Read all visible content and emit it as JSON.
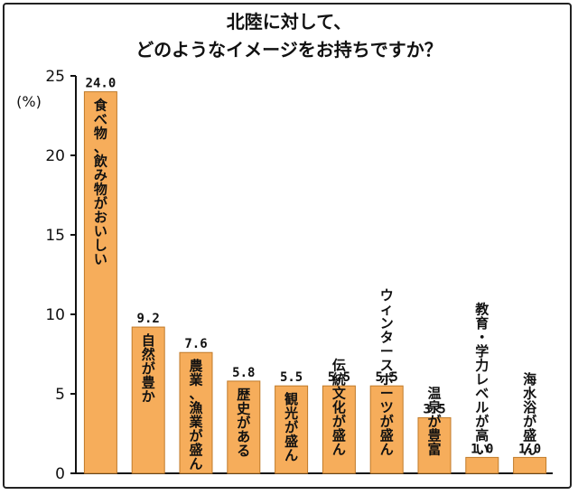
{
  "chart_data": {
    "type": "bar",
    "title": [
      "北陸に対して、",
      "どのようなイメージをお持ちですか？"
    ],
    "ylabel": "(%)",
    "ylim": [
      0,
      25
    ],
    "yticks": [
      0,
      5,
      10,
      15,
      20,
      25
    ],
    "grid": false,
    "bar_color": "#f6ad5b",
    "bar_edge_color": "#c07a2a",
    "categories": [
      "食べ物、飲み物がおいしい",
      "自然が豊か",
      "農業、漁業が盛ん",
      "歴史がある",
      "観光が盛ん",
      "伝統文化が盛ん",
      "ウィンタースポーツが盛ん",
      "温泉が豊富",
      "教育・学力レベルが高い",
      "海水浴が盛ん"
    ],
    "values": [
      24.0,
      9.2,
      7.6,
      5.8,
      5.5,
      5.5,
      5.5,
      3.5,
      1.0,
      1.0
    ],
    "value_labels": [
      "24.0",
      "9.2",
      "7.6",
      "5.8",
      "5.5",
      "5.5",
      "5.5",
      "3.5",
      "1.0",
      "1.0"
    ]
  }
}
